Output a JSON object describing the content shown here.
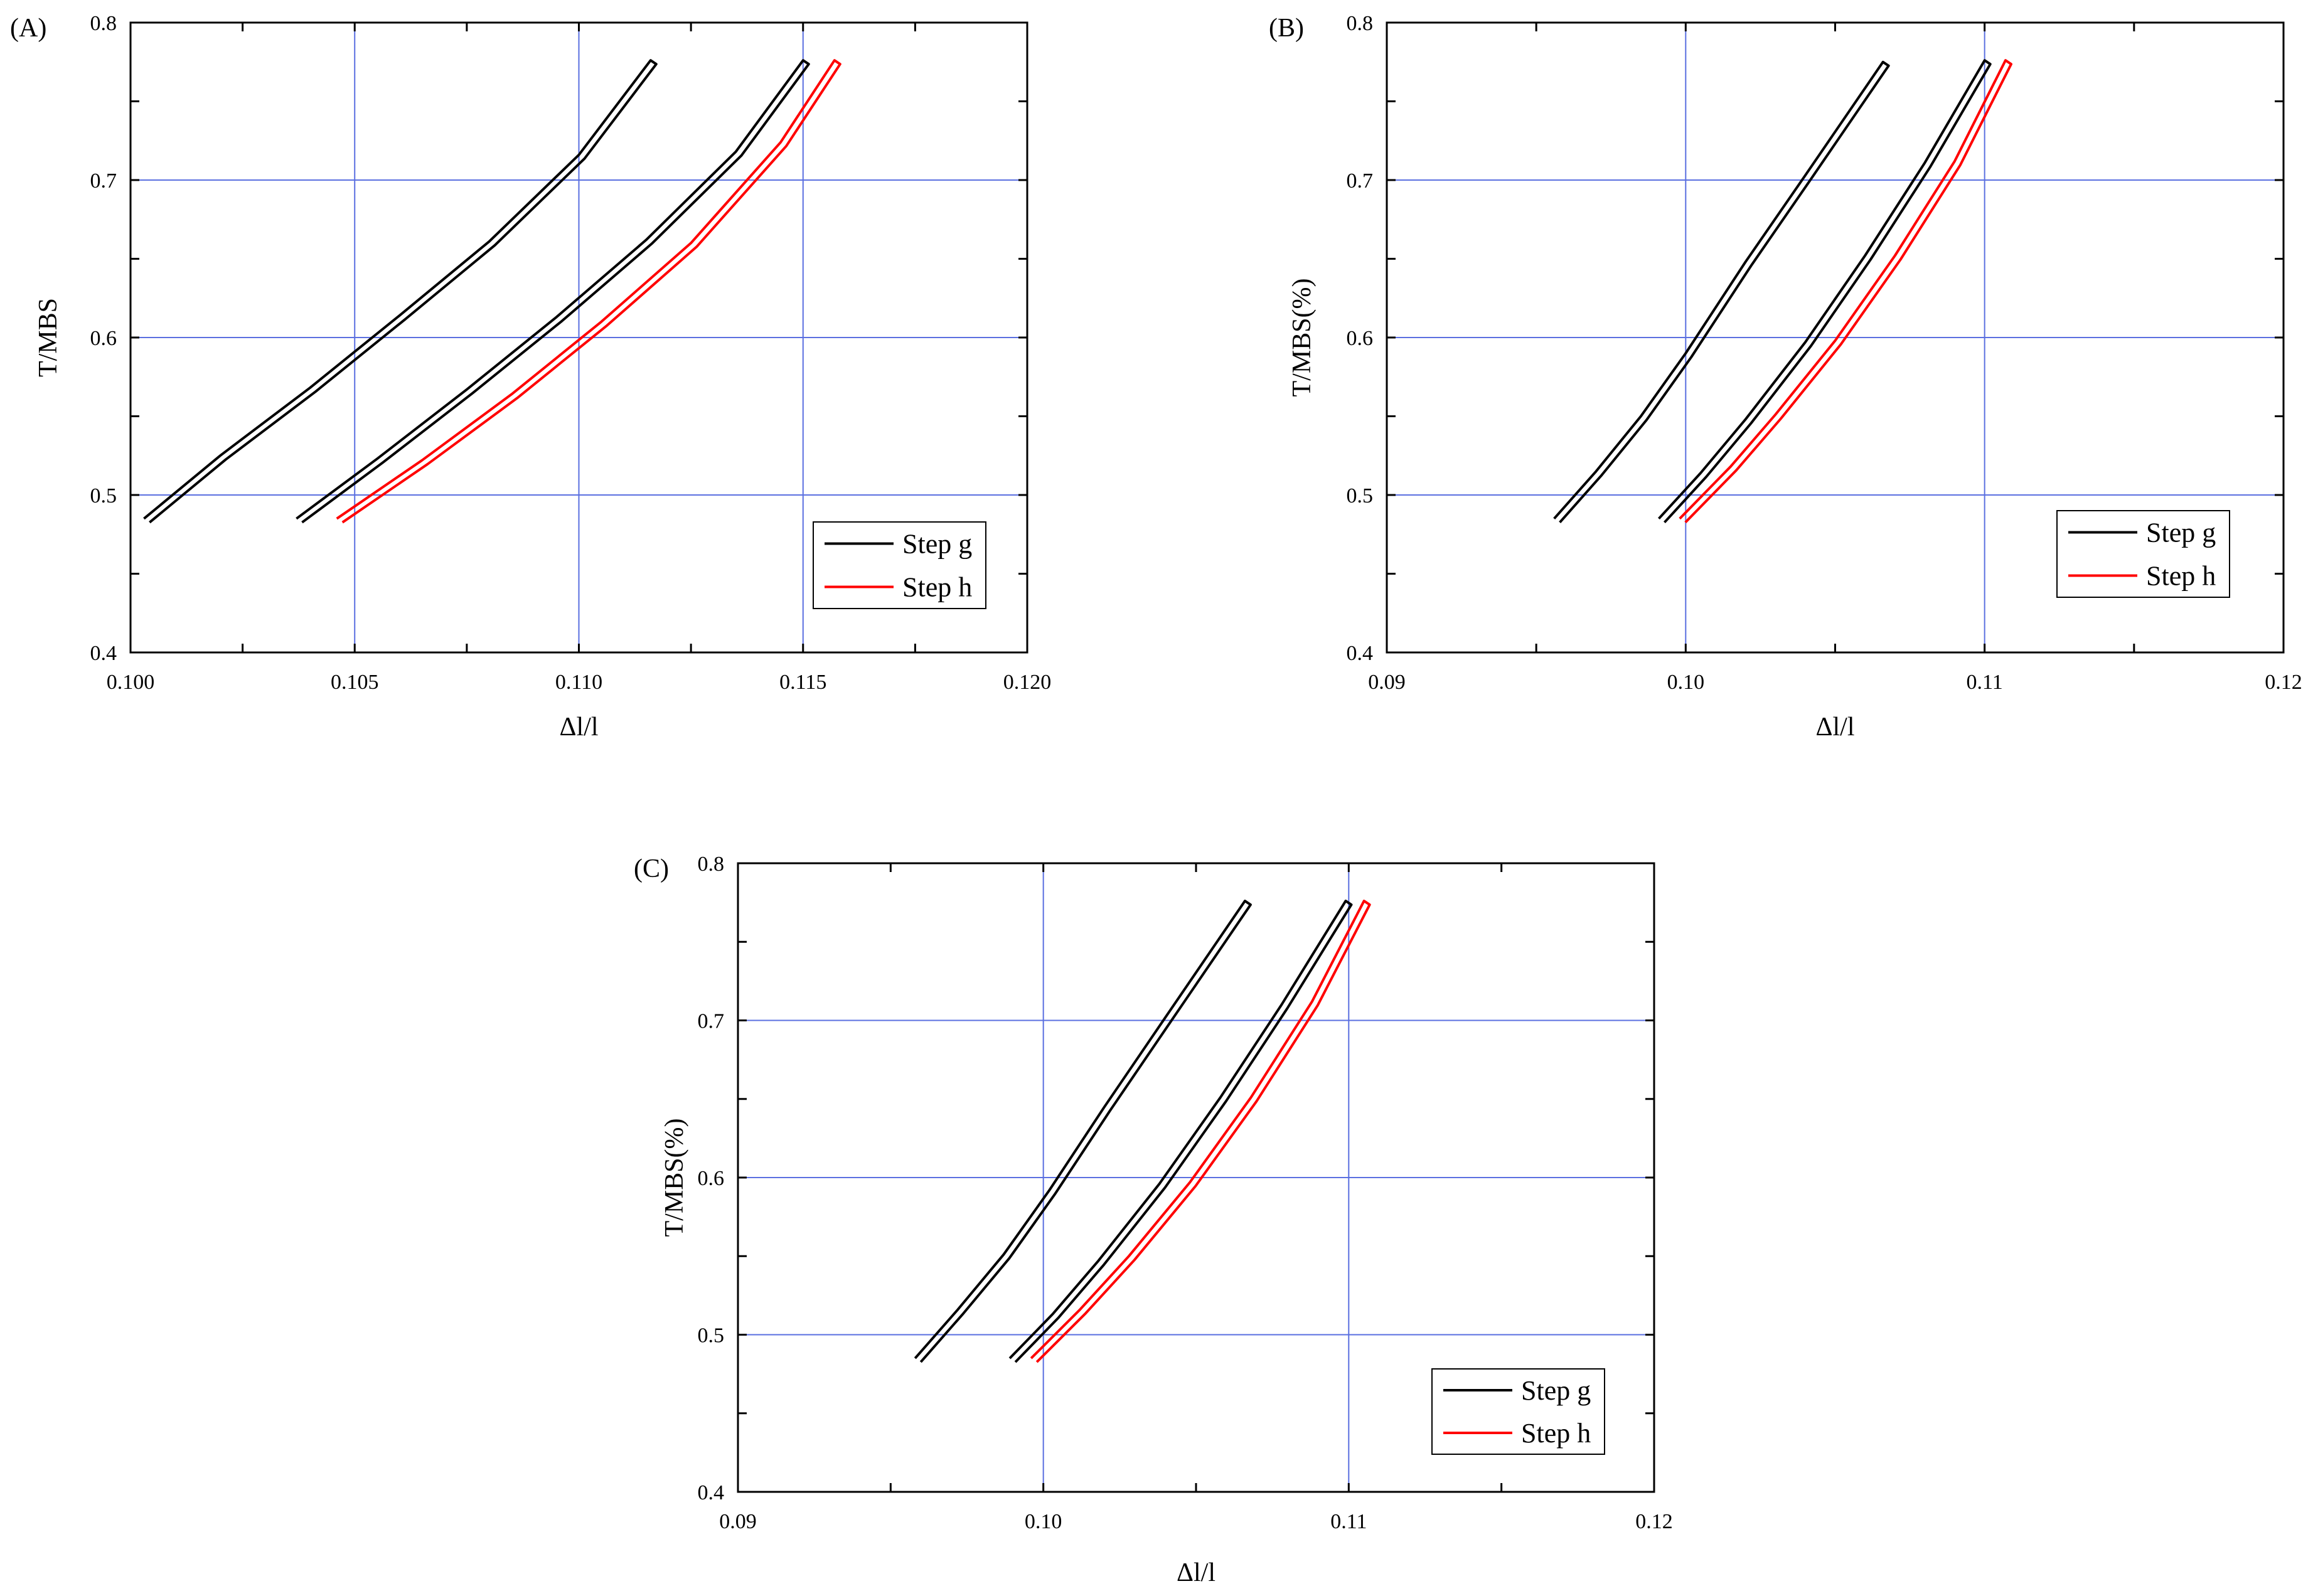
{
  "colors": {
    "grid": "#5a6fe0",
    "series_g": "#000000",
    "series_h": "#ff0000"
  },
  "chart_data": [
    {
      "panel": "(A)",
      "type": "line",
      "xlabel": "Δl/l",
      "ylabel": "T/MBS",
      "xlim": [
        0.1,
        0.12
      ],
      "ylim": [
        0.4,
        0.8
      ],
      "xticks": [
        0.1,
        0.105,
        0.11,
        0.115,
        0.12
      ],
      "xtick_labels": [
        "0.100",
        "0.105",
        "0.110",
        "0.115",
        "0.120"
      ],
      "yticks": [
        0.4,
        0.5,
        0.6,
        0.7,
        0.8
      ],
      "ytick_labels": [
        "0.4",
        "0.5",
        "0.6",
        "0.7",
        "0.8"
      ],
      "grid": true,
      "legend": "lower-right",
      "series": [
        {
          "name": "Step g",
          "color": "#000000",
          "loops": [
            {
              "x": [
                0.1003,
                0.102,
                0.104,
                0.106,
                0.108,
                0.11,
                0.1116
              ],
              "y": [
                0.485,
                0.525,
                0.568,
                0.614,
                0.661,
                0.716,
                0.776
              ]
            },
            {
              "x": [
                0.1037,
                0.1055,
                0.1075,
                0.1095,
                0.1115,
                0.1135,
                0.115
              ],
              "y": [
                0.485,
                0.523,
                0.567,
                0.613,
                0.662,
                0.718,
                0.776
              ]
            }
          ]
        },
        {
          "name": "Step h",
          "color": "#ff0000",
          "loops": [
            {
              "x": [
                0.1046,
                0.1065,
                0.1085,
                0.1105,
                0.1125,
                0.1145,
                0.1157
              ],
              "y": [
                0.485,
                0.522,
                0.564,
                0.61,
                0.66,
                0.724,
                0.776
              ]
            }
          ]
        }
      ]
    },
    {
      "panel": "(B)",
      "type": "line",
      "xlabel": "Δl/l",
      "ylabel": "T/MBS(%)",
      "xlim": [
        0.09,
        0.12
      ],
      "ylim": [
        0.4,
        0.8
      ],
      "xticks": [
        0.09,
        0.1,
        0.11,
        0.12
      ],
      "xtick_labels": [
        "0.09",
        "0.10",
        "0.11",
        "0.12"
      ],
      "yticks": [
        0.4,
        0.5,
        0.6,
        0.7,
        0.8
      ],
      "ytick_labels": [
        "0.4",
        "0.5",
        "0.6",
        "0.7",
        "0.8"
      ],
      "grid": true,
      "legend": "lower-right",
      "series": [
        {
          "name": "Step g",
          "color": "#000000",
          "loops": [
            {
              "x": [
                0.0956,
                0.097,
                0.0985,
                0.1,
                0.102,
                0.104,
                0.1066
              ],
              "y": [
                0.485,
                0.515,
                0.55,
                0.59,
                0.648,
                0.703,
                0.775
              ]
            },
            {
              "x": [
                0.0991,
                0.1005,
                0.102,
                0.104,
                0.106,
                0.108,
                0.11
              ],
              "y": [
                0.485,
                0.514,
                0.548,
                0.597,
                0.652,
                0.711,
                0.776
              ]
            }
          ]
        },
        {
          "name": "Step h",
          "color": "#ff0000",
          "loops": [
            {
              "x": [
                0.0998,
                0.1015,
                0.103,
                0.105,
                0.107,
                0.109,
                0.1107
              ],
              "y": [
                0.485,
                0.518,
                0.551,
                0.598,
                0.652,
                0.712,
                0.776
              ]
            }
          ]
        }
      ]
    },
    {
      "panel": "(C)",
      "type": "line",
      "xlabel": "Δl/l",
      "ylabel": "T/MBS(%)",
      "xlim": [
        0.09,
        0.12
      ],
      "ylim": [
        0.4,
        0.8
      ],
      "xticks": [
        0.09,
        0.1,
        0.11,
        0.12
      ],
      "xtick_labels": [
        "0.09",
        "0.10",
        "0.11",
        "0.12"
      ],
      "yticks": [
        0.4,
        0.5,
        0.6,
        0.7,
        0.8
      ],
      "ytick_labels": [
        "0.4",
        "0.5",
        "0.6",
        "0.7",
        "0.8"
      ],
      "grid": true,
      "legend": "lower-right",
      "series": [
        {
          "name": "Step g",
          "color": "#000000",
          "loops": [
            {
              "x": [
                0.0958,
                0.0972,
                0.0987,
                0.1002,
                0.102,
                0.104,
                0.1066
              ],
              "y": [
                0.485,
                0.516,
                0.551,
                0.592,
                0.645,
                0.702,
                0.776
              ]
            },
            {
              "x": [
                0.0989,
                0.1003,
                0.1018,
                0.1038,
                0.1058,
                0.1078,
                0.1099
              ],
              "y": [
                0.485,
                0.513,
                0.547,
                0.596,
                0.651,
                0.71,
                0.776
              ]
            }
          ]
        },
        {
          "name": "Step h",
          "color": "#ff0000",
          "loops": [
            {
              "x": [
                0.0996,
                0.1012,
                0.1028,
                0.1048,
                0.1068,
                0.1088,
                0.1105
              ],
              "y": [
                0.485,
                0.516,
                0.55,
                0.597,
                0.651,
                0.712,
                0.776
              ]
            }
          ]
        }
      ]
    }
  ]
}
